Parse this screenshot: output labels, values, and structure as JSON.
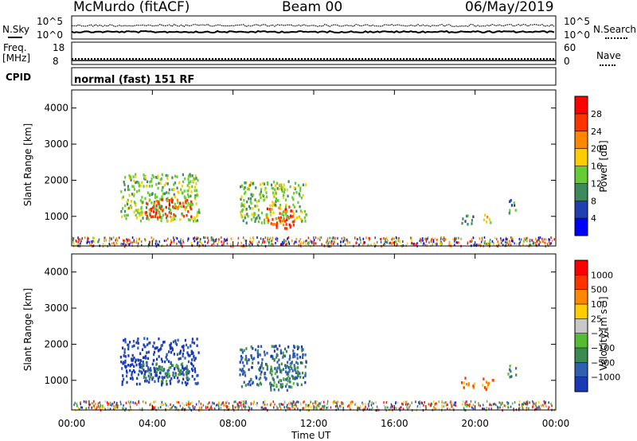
{
  "header": {
    "station": "McMurdo (fitACF)",
    "beam": "Beam 00",
    "date": "06/May/2019"
  },
  "top_panels": {
    "nsky_label": "N.Sky",
    "nsearch_label": "N.Search",
    "noise_ticks_left": [
      "10^5",
      "10^0"
    ],
    "noise_ticks_right": [
      "10^5",
      "10^0"
    ],
    "freq_label": "Freq.",
    "freq_unit": "[MHz]",
    "freq_ticks": [
      "18",
      "8"
    ],
    "nave_label": "Nave",
    "nave_ticks": [
      "60",
      "0"
    ],
    "cpid_label": "CPID",
    "cpid_value": "normal (fast) 151 RF"
  },
  "colors": {
    "power_scale": [
      "#0000ff",
      "#2040b0",
      "#3d8a5c",
      "#66cc33",
      "#ffcc00",
      "#ff8800",
      "#ff3300",
      "#ff0000"
    ],
    "velocity_scale": [
      "#1a3ab5",
      "#2f5fb0",
      "#3b8a4f",
      "#55bb33",
      "#c8c8c8",
      "#ffcc00",
      "#ff8800",
      "#ff3300",
      "#ff0000"
    ]
  },
  "chart_data": [
    {
      "type": "heatmap",
      "name": "power",
      "ylabel": "Slant Range [km]",
      "xlabel": "Time UT",
      "x_ticks": [
        "00:00",
        "04:00",
        "08:00",
        "12:00",
        "16:00",
        "20:00",
        "00:00"
      ],
      "xlim_hours": [
        0,
        24
      ],
      "y_ticks": [
        1000,
        2000,
        3000,
        4000
      ],
      "ylim": [
        180,
        4500
      ],
      "colorbar_label": "Power [dB]",
      "colorbar_ticks": [
        "4",
        "8",
        "12",
        "16",
        "20",
        "24",
        "28"
      ],
      "echo_regions": [
        {
          "t0": 2.4,
          "t1": 6.3,
          "r0": 900,
          "r1": 2200,
          "level": 3
        },
        {
          "t0": 3.6,
          "t1": 5.9,
          "r0": 1000,
          "r1": 1500,
          "level": 6
        },
        {
          "t0": 8.3,
          "t1": 11.6,
          "r0": 850,
          "r1": 2000,
          "level": 3
        },
        {
          "t0": 9.6,
          "t1": 11.0,
          "r0": 700,
          "r1": 1300,
          "level": 6
        },
        {
          "t0": 19.3,
          "t1": 19.9,
          "r0": 800,
          "r1": 1100,
          "level": 2
        },
        {
          "t0": 20.4,
          "t1": 20.8,
          "r0": 800,
          "r1": 1100,
          "level": 4
        },
        {
          "t0": 21.6,
          "t1": 22.0,
          "r0": 1100,
          "r1": 1500,
          "level": 2
        }
      ]
    },
    {
      "type": "heatmap",
      "name": "velocity",
      "ylabel": "Slant Range [km]",
      "xlabel": "Time UT",
      "x_ticks": [
        "00:00",
        "04:00",
        "08:00",
        "12:00",
        "16:00",
        "20:00",
        "00:00"
      ],
      "xlim_hours": [
        0,
        24
      ],
      "y_ticks": [
        1000,
        2000,
        3000,
        4000
      ],
      "ylim": [
        180,
        4500
      ],
      "colorbar_label": "Velocity [m s⁻¹]",
      "colorbar_ticks": [
        "1000",
        "500",
        "100",
        "25",
        "−25",
        "−100",
        "−500",
        "−1000"
      ],
      "echo_regions": [
        {
          "t0": 2.4,
          "t1": 6.3,
          "r0": 900,
          "r1": 2200,
          "level": 0
        },
        {
          "t0": 3.4,
          "t1": 5.8,
          "r0": 1000,
          "r1": 1500,
          "level": 2
        },
        {
          "t0": 8.3,
          "t1": 11.6,
          "r0": 850,
          "r1": 2000,
          "level": 1
        },
        {
          "t0": 9.8,
          "t1": 11.2,
          "r0": 750,
          "r1": 1500,
          "level": 2
        },
        {
          "t0": 19.3,
          "t1": 20.0,
          "r0": 800,
          "r1": 1100,
          "level": 6
        },
        {
          "t0": 20.3,
          "t1": 20.9,
          "r0": 750,
          "r1": 1100,
          "level": 6
        },
        {
          "t0": 21.6,
          "t1": 22.0,
          "r0": 1100,
          "r1": 1500,
          "level": 2
        }
      ]
    }
  ]
}
